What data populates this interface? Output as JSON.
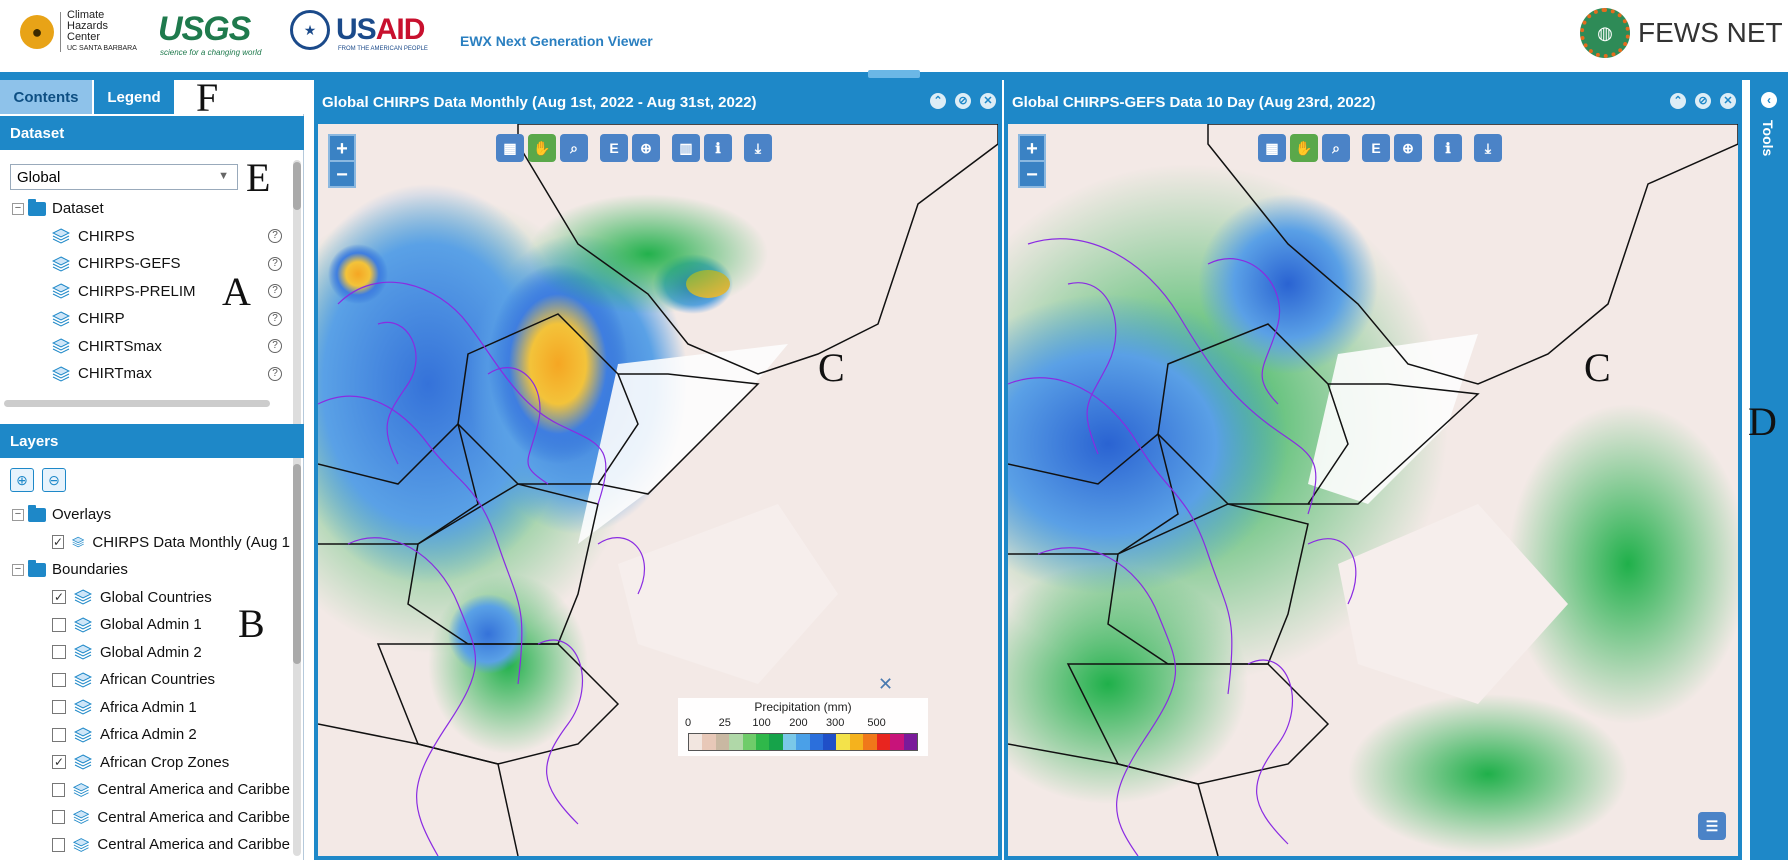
{
  "header": {
    "chc": {
      "line1": "Climate",
      "line2": "Hazards",
      "line3": "Center",
      "line4": "UC SANTA BARBARA"
    },
    "usgs": {
      "name": "USGS",
      "tagline": "science for a changing world"
    },
    "usaid": {
      "name_us": "US",
      "name_aid": "AID",
      "tagline": "FROM THE AMERICAN PEOPLE"
    },
    "viewer_title": "EWX Next Generation Viewer",
    "fews": "FEWS NET"
  },
  "left": {
    "tabs": [
      {
        "label": "Contents"
      },
      {
        "label": "Legend"
      }
    ],
    "dataset_header": "Dataset",
    "dataset_select": "Global",
    "dataset_folder": "Dataset",
    "datasets": [
      {
        "label": "CHIRPS"
      },
      {
        "label": "CHIRPS-GEFS"
      },
      {
        "label": "CHIRPS-PRELIM"
      },
      {
        "label": "CHIRP"
      },
      {
        "label": "CHIRTSmax"
      },
      {
        "label": "CHIRTmax"
      }
    ],
    "layers_header": "Layers",
    "overlays_folder": "Overlays",
    "overlay_item": "CHIRPS Data Monthly (Aug 1",
    "boundaries_folder": "Boundaries",
    "boundaries": [
      {
        "label": "Global Countries",
        "checked": true
      },
      {
        "label": "Global Admin 1",
        "checked": false
      },
      {
        "label": "Global Admin 2",
        "checked": false
      },
      {
        "label": "African Countries",
        "checked": false
      },
      {
        "label": "Africa Admin 1",
        "checked": false
      },
      {
        "label": "Africa Admin 2",
        "checked": false
      },
      {
        "label": "African Crop Zones",
        "checked": true
      },
      {
        "label": "Central America and Caribbe",
        "checked": false
      },
      {
        "label": "Central America and Caribbe",
        "checked": false
      },
      {
        "label": "Central America and Caribbe",
        "checked": false
      }
    ]
  },
  "annotations": {
    "A": "A",
    "B": "B",
    "C1": "C",
    "C2": "C",
    "D": "D",
    "E": "E",
    "F": "F"
  },
  "map1": {
    "title": "Global CHIRPS Data Monthly (Aug 1st, 2022 - Aug 31st, 2022)",
    "legend": {
      "title": "Precipitation (mm)",
      "ticks": [
        "0",
        "25",
        "100",
        "200",
        "300",
        "500"
      ],
      "colors": [
        "#f2e6e0",
        "#e8c8b8",
        "#c9b8a2",
        "#b0d8a8",
        "#6fcc6a",
        "#2fb84a",
        "#16a34a",
        "#7ac8e8",
        "#4aa0e8",
        "#2b6fdc",
        "#1f4fc8",
        "#f3e24a",
        "#f5b21d",
        "#f0781a",
        "#e8251f",
        "#c8137a",
        "#7a1a9a"
      ]
    }
  },
  "map2": {
    "title": "Global CHIRPS-GEFS Data 10 Day (Aug 23rd, 2022)"
  },
  "tools": {
    "label": "Tools"
  },
  "colors": {
    "accent": "#1e88c8",
    "tab_active": "#8ec2ea"
  }
}
